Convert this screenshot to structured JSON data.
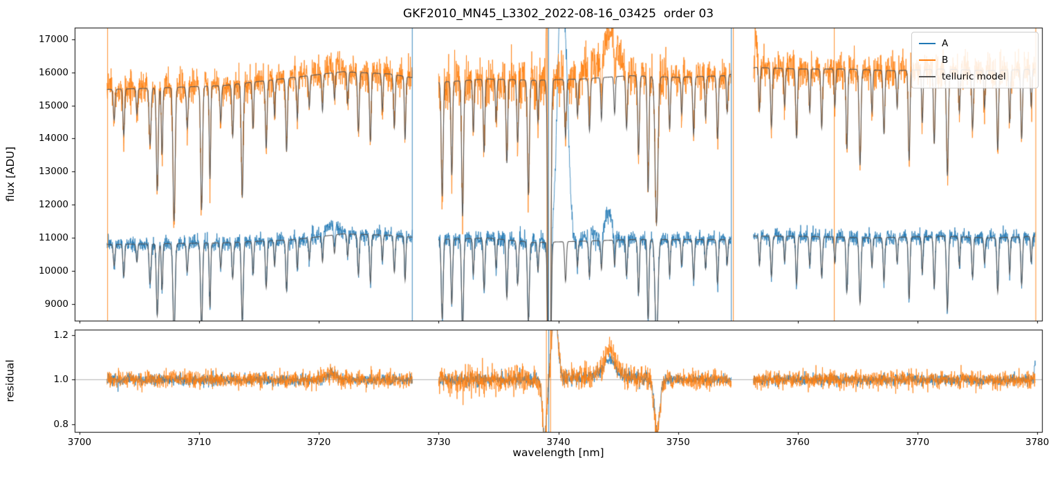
{
  "chart_data": {
    "type": "line",
    "title": "GKF2010_MN45_L3302_2022-08-16_03425  order 03",
    "xlabel": "wavelength [nm]",
    "xlim": [
      3699.6,
      3780.4
    ],
    "xticks": {
      "values": [
        3700,
        3710,
        3720,
        3730,
        3740,
        3750,
        3760,
        3770,
        3780
      ],
      "labels": [
        "3700",
        "3710",
        "3720",
        "3730",
        "3740",
        "3750",
        "3760",
        "3770",
        "3780"
      ]
    },
    "panels": [
      {
        "name": "flux",
        "ylabel": "flux [ADU]",
        "ylim": [
          8500,
          17350
        ],
        "ytick_values": [
          9000,
          10000,
          11000,
          12000,
          13000,
          14000,
          15000,
          16000,
          17000
        ],
        "ytick_labels": [
          "9000",
          "10000",
          "11000",
          "12000",
          "13000",
          "14000",
          "15000",
          "16000",
          "17000"
        ]
      },
      {
        "name": "residual",
        "ylabel": "residual",
        "ylim": [
          0.765,
          1.225
        ],
        "ytick_values": [
          0.8,
          1.0,
          1.2
        ],
        "ytick_labels": [
          "0.8",
          "1.0",
          "1.2"
        ]
      }
    ],
    "legend": [
      {
        "label": "A",
        "color": "#1f77b4"
      },
      {
        "label": "B",
        "color": "#ff7f0e"
      },
      {
        "label": "telluric model",
        "color": "#555555"
      }
    ],
    "grid": false,
    "legend_position": "upper right",
    "segments": [
      [
        3702.3,
        3727.8
      ],
      [
        3730.0,
        3754.45
      ],
      [
        3756.3,
        3779.85
      ]
    ],
    "sample_step": 0.02,
    "noise_seed": 20220816,
    "series": {
      "A": {
        "label": "A",
        "color": "#1f77b4",
        "noise_sigma": 110,
        "continuum": [
          [
            3702,
            10800
          ],
          [
            3706,
            10820
          ],
          [
            3712,
            10850
          ],
          [
            3718,
            10950
          ],
          [
            3722,
            11120
          ],
          [
            3726,
            11080
          ],
          [
            3730,
            10950
          ],
          [
            3734,
            11000
          ],
          [
            3738,
            10860
          ],
          [
            3742,
            10900
          ],
          [
            3746,
            10950
          ],
          [
            3750,
            10950
          ],
          [
            3754,
            10950
          ],
          [
            3756.5,
            11060
          ],
          [
            3760,
            11050
          ],
          [
            3766,
            11000
          ],
          [
            3772,
            11050
          ],
          [
            3776,
            11000
          ],
          [
            3780,
            11050
          ]
        ],
        "bumps": [
          [
            3721,
            330,
            0.8
          ],
          [
            3742.6,
            250,
            0.5
          ],
          [
            3744.2,
            850,
            0.45
          ],
          [
            3740.35,
            9500,
            0.5
          ]
        ]
      },
      "B": {
        "label": "B",
        "color": "#ff7f0e",
        "noise_sigma": 255,
        "continuum": [
          [
            3702,
            15480
          ],
          [
            3706,
            15520
          ],
          [
            3712,
            15600
          ],
          [
            3718,
            15850
          ],
          [
            3722,
            16020
          ],
          [
            3726,
            15950
          ],
          [
            3730,
            15700
          ],
          [
            3734,
            15800
          ],
          [
            3738,
            15760
          ],
          [
            3742,
            15800
          ],
          [
            3746,
            15900
          ],
          [
            3750,
            15850
          ],
          [
            3754,
            15900
          ],
          [
            3756.5,
            16150
          ],
          [
            3760,
            16100
          ],
          [
            3764,
            16100
          ],
          [
            3768,
            16050
          ],
          [
            3772,
            16100
          ],
          [
            3776,
            16050
          ],
          [
            3780,
            16100
          ]
        ],
        "bumps": [
          [
            3721,
            250,
            0.8
          ],
          [
            3742.6,
            400,
            0.5
          ],
          [
            3744.4,
            1300,
            0.95
          ],
          [
            3739.05,
            6500,
            0.07
          ],
          [
            3756.5,
            900,
            0.12
          ]
        ]
      },
      "model": {
        "label": "telluric model",
        "color": "#555555"
      }
    },
    "noise_regions": [
      {
        "range": [
          3730,
          3739.5
        ],
        "A": 1.25,
        "B": 1.55
      },
      {
        "range": [
          3739.5,
          3749
        ],
        "A": 1.35,
        "B": 1.3
      },
      {
        "range": [
          3756.3,
          3757.3
        ],
        "B": 1.3
      }
    ],
    "telluric_lines": [
      [
        3702.9,
        0.06,
        0.07
      ],
      [
        3703.7,
        0.09,
        0.07
      ],
      [
        3704.8,
        0.05,
        0.06
      ],
      [
        3705.9,
        0.11,
        0.08
      ],
      [
        3706.5,
        0.2,
        0.08
      ],
      [
        3706.9,
        0.13,
        0.06
      ],
      [
        3707.9,
        0.26,
        0.09
      ],
      [
        3709.0,
        0.08,
        0.07
      ],
      [
        3710.2,
        0.24,
        0.08
      ],
      [
        3710.9,
        0.18,
        0.06
      ],
      [
        3711.8,
        0.07,
        0.06
      ],
      [
        3712.8,
        0.1,
        0.07
      ],
      [
        3713.6,
        0.22,
        0.08
      ],
      [
        3714.5,
        0.09,
        0.06
      ],
      [
        3715.6,
        0.13,
        0.07
      ],
      [
        3716.3,
        0.07,
        0.06
      ],
      [
        3717.3,
        0.14,
        0.07
      ],
      [
        3718.2,
        0.08,
        0.06
      ],
      [
        3719.2,
        0.06,
        0.06
      ],
      [
        3720.3,
        0.07,
        0.06
      ],
      [
        3721.3,
        0.05,
        0.06
      ],
      [
        3722.4,
        0.06,
        0.06
      ],
      [
        3723.3,
        0.11,
        0.07
      ],
      [
        3724.3,
        0.13,
        0.07
      ],
      [
        3725.3,
        0.07,
        0.06
      ],
      [
        3726.3,
        0.1,
        0.07
      ],
      [
        3727.2,
        0.12,
        0.06
      ],
      [
        3730.3,
        0.22,
        0.08
      ],
      [
        3731.1,
        0.18,
        0.07
      ],
      [
        3732.0,
        0.26,
        0.08
      ],
      [
        3732.9,
        0.1,
        0.06
      ],
      [
        3733.8,
        0.14,
        0.07
      ],
      [
        3734.8,
        0.08,
        0.06
      ],
      [
        3735.7,
        0.16,
        0.07
      ],
      [
        3736.6,
        0.12,
        0.07
      ],
      [
        3737.5,
        0.22,
        0.08
      ],
      [
        3738.3,
        0.08,
        0.06
      ],
      [
        3739.25,
        0.92,
        0.1
      ],
      [
        3740.6,
        0.11,
        0.07
      ],
      [
        3741.6,
        0.07,
        0.06
      ],
      [
        3742.6,
        0.1,
        0.07
      ],
      [
        3743.6,
        0.08,
        0.06
      ],
      [
        3744.7,
        0.07,
        0.06
      ],
      [
        3745.7,
        0.1,
        0.07
      ],
      [
        3746.7,
        0.15,
        0.07
      ],
      [
        3747.5,
        0.22,
        0.07
      ],
      [
        3748.2,
        0.28,
        0.12
      ],
      [
        3749.3,
        0.1,
        0.06
      ],
      [
        3750.3,
        0.07,
        0.06
      ],
      [
        3751.3,
        0.11,
        0.07
      ],
      [
        3752.3,
        0.08,
        0.06
      ],
      [
        3753.3,
        0.12,
        0.07
      ],
      [
        3754.1,
        0.07,
        0.06
      ],
      [
        3756.8,
        0.08,
        0.06
      ],
      [
        3757.8,
        0.11,
        0.07
      ],
      [
        3758.9,
        0.07,
        0.06
      ],
      [
        3759.9,
        0.13,
        0.07
      ],
      [
        3761.0,
        0.08,
        0.06
      ],
      [
        3762.0,
        0.11,
        0.07
      ],
      [
        3763.1,
        0.07,
        0.06
      ],
      [
        3764.1,
        0.15,
        0.07
      ],
      [
        3765.2,
        0.18,
        0.08
      ],
      [
        3766.2,
        0.08,
        0.06
      ],
      [
        3767.2,
        0.12,
        0.07
      ],
      [
        3768.3,
        0.07,
        0.06
      ],
      [
        3769.3,
        0.17,
        0.07
      ],
      [
        3770.4,
        0.1,
        0.06
      ],
      [
        3771.4,
        0.14,
        0.07
      ],
      [
        3772.5,
        0.2,
        0.08
      ],
      [
        3773.5,
        0.08,
        0.06
      ],
      [
        3774.6,
        0.11,
        0.07
      ],
      [
        3775.6,
        0.07,
        0.06
      ],
      [
        3776.7,
        0.15,
        0.07
      ],
      [
        3777.7,
        0.1,
        0.06
      ],
      [
        3778.7,
        0.13,
        0.07
      ],
      [
        3779.5,
        0.07,
        0.06
      ]
    ],
    "artifacts_flux": [
      [
        3702.35,
        "B"
      ],
      [
        3727.8,
        "A"
      ],
      [
        3739.05,
        "B"
      ],
      [
        3739.18,
        "A"
      ],
      [
        3754.45,
        "A"
      ],
      [
        3754.62,
        "B"
      ],
      [
        3763.05,
        "B"
      ],
      [
        3779.88,
        "B"
      ]
    ],
    "artifacts_residual": [
      [
        3739.0,
        "B"
      ],
      [
        3739.2,
        "A"
      ],
      [
        3739.35,
        "B"
      ]
    ],
    "residual": {
      "center": 1.0,
      "sigma_A": 0.012,
      "sigma_B": 0.02,
      "regions": [
        {
          "range": [
            3730,
            3739.5
          ],
          "A": 1.2,
          "B": 1.6
        },
        {
          "range": [
            3739.5,
            3749
          ],
          "A": 1.3,
          "B": 1.4
        }
      ],
      "features_common": [
        [
          3721,
          0.025,
          0.6
        ],
        [
          3738.85,
          -0.26,
          0.25
        ],
        [
          3739.7,
          0.34,
          0.35
        ],
        [
          3748.25,
          -0.24,
          0.3
        ]
      ],
      "features_A": [
        [
          3744.3,
          0.07,
          0.55
        ],
        [
          3779.8,
          0.08,
          0.06
        ]
      ],
      "features_B": [
        [
          3744.3,
          0.12,
          0.55
        ]
      ],
      "broad": [
        [
          3744,
          0.028,
          2.2
        ]
      ]
    }
  }
}
